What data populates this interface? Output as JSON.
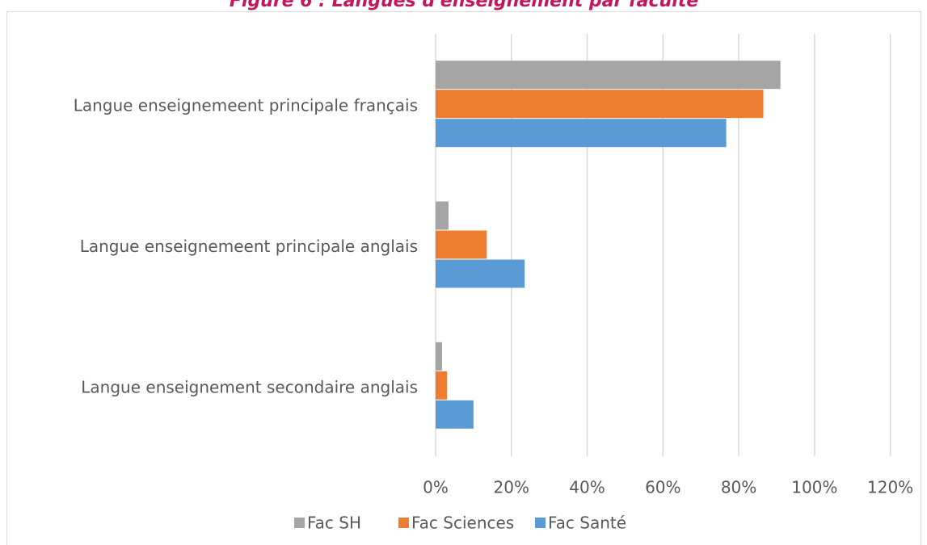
{
  "chart_data": {
    "type": "hbar",
    "title": "Figure 6 : Langues d'enseignement par faculté",
    "categories": [
      "Langue enseignemeent principale français",
      "Langue enseignemeent principale anglais",
      "Langue enseignement secondaire anglais"
    ],
    "series": [
      {
        "name": "Fac SH",
        "color": "#a5a5a5",
        "values": [
          91,
          3.4,
          1.7
        ]
      },
      {
        "name": "Fac Sciences",
        "color": "#ed7d31",
        "values": [
          86.5,
          13.5,
          3
        ]
      },
      {
        "name": "Fac Santé",
        "color": "#5b9bd5",
        "values": [
          76.7,
          23.5,
          10
        ]
      }
    ],
    "xlim": [
      0,
      120
    ],
    "xticks": [
      {
        "value": 0,
        "label": "0%"
      },
      {
        "value": 20,
        "label": "20%"
      },
      {
        "value": 40,
        "label": "40%"
      },
      {
        "value": 60,
        "label": "60%"
      },
      {
        "value": 80,
        "label": "80%"
      },
      {
        "value": 100,
        "label": "100%"
      },
      {
        "value": 120,
        "label": "120%"
      }
    ],
    "grid": true,
    "legend": "bottom"
  }
}
